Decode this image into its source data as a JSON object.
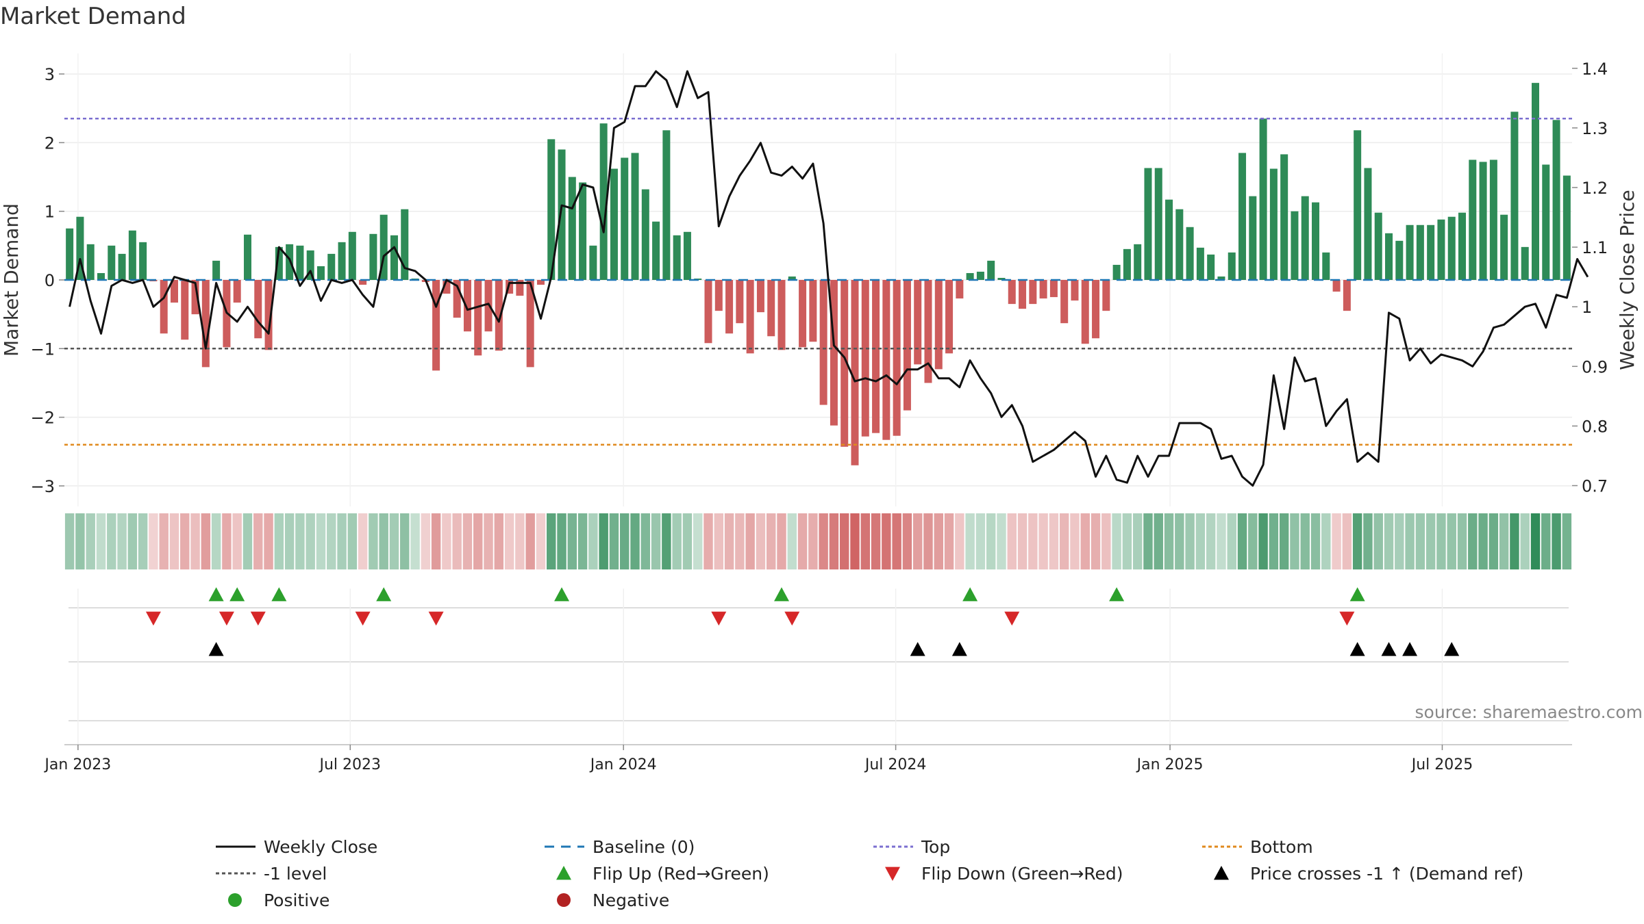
{
  "chart_data": {
    "type": "bar",
    "title": "Market Demand",
    "xlabel": "",
    "ylabel": "Market Demand",
    "y2label": "Weekly Close Price",
    "ylim": [
      -3.3,
      3.3
    ],
    "y2lim": [
      0.665,
      1.425
    ],
    "yticks": [
      -3,
      -2,
      -1,
      0,
      1,
      2,
      3
    ],
    "ytick_labels": [
      "−3",
      "−2",
      "−1",
      "0",
      "1",
      "2",
      "3"
    ],
    "y2ticks": [
      0.7,
      0.8,
      0.9,
      1.0,
      1.1,
      1.2,
      1.3,
      1.4
    ],
    "y2tick_labels": [
      "0.7",
      "0.8",
      "0.9",
      "1",
      "1.1",
      "1.2",
      "1.3",
      "1.4"
    ],
    "xtick_labels": [
      "Jan 2023",
      "Jul 2023",
      "Jan 2024",
      "Jul 2024",
      "Jan 2025",
      "Jul 2025"
    ],
    "xtick_weeks": [
      1.3,
      27.3,
      53.4,
      79.4,
      105.6,
      131.6
    ],
    "top_level": 2.35,
    "bottom_level": -2.4,
    "minus_one_level": -1.0,
    "demand": [
      0.75,
      0.92,
      0.52,
      0.1,
      0.5,
      0.38,
      0.72,
      0.55,
      -0.02,
      -0.78,
      -0.33,
      -0.87,
      -0.5,
      -1.27,
      0.28,
      -0.98,
      -0.33,
      0.66,
      -0.85,
      -1.02,
      0.48,
      0.52,
      0.5,
      0.43,
      0.2,
      0.38,
      0.55,
      0.7,
      -0.07,
      0.67,
      0.95,
      0.65,
      1.03,
      0.02,
      -0.03,
      -1.32,
      -0.2,
      -0.55,
      -0.75,
      -1.1,
      -0.75,
      -1.03,
      -0.2,
      -0.23,
      -1.27,
      -0.07,
      2.05,
      1.9,
      1.5,
      1.42,
      0.5,
      2.28,
      1.62,
      1.78,
      1.85,
      1.32,
      0.85,
      2.18,
      0.65,
      0.7,
      0.02,
      -0.92,
      -0.45,
      -0.78,
      -0.63,
      -1.07,
      -0.47,
      -0.82,
      -1.02,
      0.05,
      -0.98,
      -0.9,
      -1.82,
      -2.12,
      -2.43,
      -2.7,
      -2.28,
      -2.23,
      -2.33,
      -2.27,
      -1.9,
      -1.23,
      -1.5,
      -1.3,
      -1.07,
      -0.27,
      0.1,
      0.12,
      0.28,
      0.03,
      -0.35,
      -0.42,
      -0.35,
      -0.27,
      -0.25,
      -0.63,
      -0.3,
      -0.93,
      -0.85,
      -0.45,
      0.22,
      0.45,
      0.52,
      1.63,
      1.63,
      1.17,
      1.03,
      0.77,
      0.47,
      0.37,
      0.05,
      0.4,
      1.85,
      1.22,
      2.35,
      1.62,
      1.83,
      1.0,
      1.22,
      1.13,
      0.4,
      -0.17,
      -0.45,
      2.18,
      1.63,
      0.98,
      0.68,
      0.57,
      0.8,
      0.8,
      0.8,
      0.88,
      0.92,
      0.98,
      1.75,
      1.72,
      1.75,
      0.95,
      2.45,
      0.48,
      2.87,
      1.68,
      2.33,
      1.52
    ],
    "weekly_close": [
      1.0,
      1.08,
      1.01,
      0.955,
      1.035,
      1.045,
      1.04,
      1.045,
      1.0,
      1.015,
      1.05,
      1.045,
      1.04,
      0.93,
      1.04,
      0.99,
      0.975,
      1.0,
      0.975,
      0.955,
      1.1,
      1.08,
      1.035,
      1.06,
      1.01,
      1.045,
      1.04,
      1.045,
      1.02,
      1.0,
      1.085,
      1.1,
      1.065,
      1.06,
      1.045,
      1.0,
      1.045,
      1.035,
      0.995,
      1.0,
      1.005,
      0.975,
      1.04,
      1.04,
      1.04,
      0.98,
      1.05,
      1.17,
      1.165,
      1.205,
      1.2,
      1.125,
      1.3,
      1.31,
      1.37,
      1.37,
      1.395,
      1.38,
      1.335,
      1.395,
      1.35,
      1.36,
      1.135,
      1.185,
      1.22,
      1.245,
      1.275,
      1.225,
      1.22,
      1.235,
      1.215,
      1.24,
      1.14,
      0.935,
      0.915,
      0.875,
      0.88,
      0.875,
      0.885,
      0.87,
      0.895,
      0.895,
      0.905,
      0.88,
      0.88,
      0.865,
      0.91,
      0.88,
      0.855,
      0.815,
      0.835,
      0.8,
      0.74,
      0.75,
      0.76,
      0.775,
      0.79,
      0.775,
      0.715,
      0.75,
      0.71,
      0.705,
      0.75,
      0.715,
      0.75,
      0.75,
      0.805,
      0.805,
      0.805,
      0.795,
      0.745,
      0.75,
      0.715,
      0.7,
      0.735,
      0.885,
      0.795,
      0.915,
      0.875,
      0.88,
      0.8,
      0.825,
      0.845,
      0.74,
      0.755,
      0.74,
      0.99,
      0.98,
      0.91,
      0.93,
      0.905,
      0.92,
      0.915,
      0.91,
      0.9,
      0.925,
      0.965,
      0.97,
      0.985,
      1.0,
      1.005,
      0.965,
      1.02,
      1.015,
      1.08,
      1.05
    ],
    "flip_up_weeks": [
      14,
      16,
      20,
      30,
      47,
      68,
      86,
      100,
      123
    ],
    "flip_down_weeks": [
      8,
      15,
      18,
      28,
      35,
      62,
      69,
      90,
      122
    ],
    "price_cross_weeks": [
      14,
      81,
      85,
      123,
      126,
      128,
      132
    ],
    "source": "source: sharemaestro.com",
    "legend": [
      {
        "label": "Weekly Close",
        "marker": "line-solid",
        "color": "#111111"
      },
      {
        "label": "Baseline (0)",
        "marker": "line-dash",
        "color": "#1f77b4"
      },
      {
        "label": "Top",
        "marker": "line-dot",
        "color": "#7b6fd0"
      },
      {
        "label": "Bottom",
        "marker": "line-dot",
        "color": "#e08a1e"
      },
      {
        "label": "-1 level",
        "marker": "line-dot",
        "color": "#555555"
      },
      {
        "label": "Flip Up (Red→Green)",
        "marker": "triangle-up",
        "color": "#2ca02c"
      },
      {
        "label": "Flip Down (Green→Red)",
        "marker": "triangle-down",
        "color": "#d62728"
      },
      {
        "label": "Price crosses -1 ↑ (Demand ref)",
        "marker": "triangle-up",
        "color": "#000000"
      },
      {
        "label": "Positive",
        "marker": "circle",
        "color": "#2ca02c"
      },
      {
        "label": "Negative",
        "marker": "circle",
        "color": "#b22222"
      }
    ],
    "colors": {
      "positive_bar": "#2e8b57",
      "negative_bar": "#cd5c5c",
      "top": "#7b6fd0",
      "bottom": "#e08a1e",
      "minus_one": "#555555",
      "baseline": "#1f77b4",
      "price": "#111111",
      "flip_up": "#2ca02c",
      "flip_down": "#d62728",
      "cross": "#000000"
    }
  }
}
